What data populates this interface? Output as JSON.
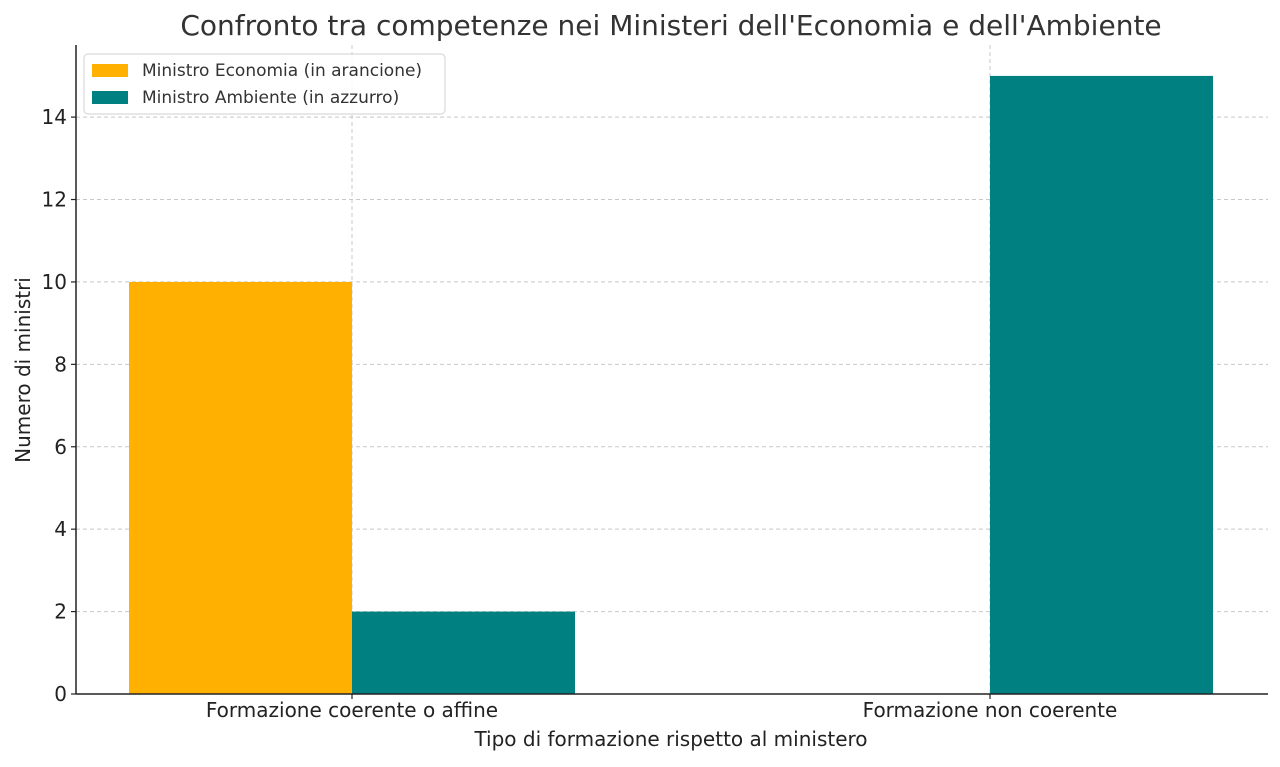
{
  "chart_data": {
    "type": "bar",
    "title": "Confronto tra competenze nei Ministeri dell'Economia e dell'Ambiente",
    "xlabel": "Tipo di formazione rispetto al ministero",
    "ylabel": "Numero di ministri",
    "categories": [
      "Formazione coerente o affine",
      "Formazione non coerente"
    ],
    "series": [
      {
        "name": "Ministro Economia (in arancione)",
        "values": [
          10,
          0
        ],
        "color": "#FFB000"
      },
      {
        "name": "Ministro Ambiente (in azzurro)",
        "values": [
          2,
          15
        ],
        "color": "#008080"
      }
    ],
    "ylim": [
      0,
      15.75
    ],
    "yticks": [
      0,
      2,
      4,
      6,
      8,
      10,
      12,
      14
    ],
    "grid": true,
    "legend_position": "top-left"
  }
}
